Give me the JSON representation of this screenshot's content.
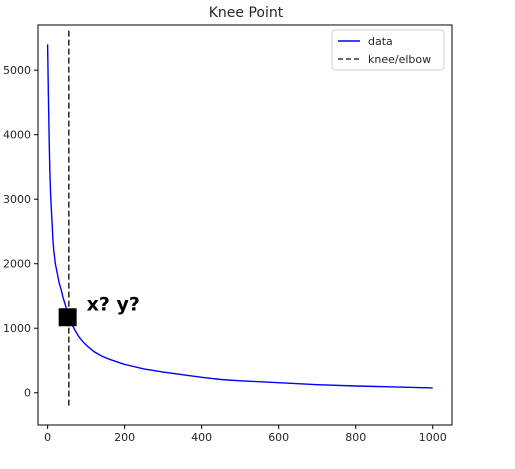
{
  "chart_data": {
    "type": "line",
    "title": "Knee Point",
    "xlabel": "",
    "ylabel": "",
    "xlim": [
      -25,
      1050
    ],
    "ylim": [
      -500,
      5700
    ],
    "xticks": [
      0,
      200,
      400,
      600,
      800,
      1000
    ],
    "yticks": [
      0,
      1000,
      2000,
      3000,
      4000,
      5000
    ],
    "grid": false,
    "legend": "top-right",
    "series": [
      {
        "name": "data",
        "color": "#0000ff",
        "style": "solid",
        "x": [
          0,
          2,
          4,
          6,
          8,
          10,
          12,
          14,
          16,
          18,
          20,
          25,
          30,
          35,
          40,
          45,
          50,
          55,
          60,
          70,
          80,
          90,
          100,
          120,
          140,
          160,
          180,
          200,
          250,
          300,
          350,
          400,
          450,
          500,
          600,
          700,
          800,
          900,
          1000
        ],
        "y": [
          5400,
          4600,
          3900,
          3400,
          3050,
          2800,
          2600,
          2350,
          2200,
          2100,
          2000,
          1850,
          1700,
          1600,
          1480,
          1380,
          1280,
          1180,
          1100,
          980,
          880,
          800,
          740,
          640,
          570,
          520,
          480,
          440,
          370,
          320,
          280,
          240,
          205,
          185,
          155,
          125,
          105,
          90,
          75
        ]
      },
      {
        "name": "knee/elbow",
        "color": "#333333",
        "style": "dashed",
        "x": [
          55,
          55
        ],
        "y": [
          -200,
          5650
        ]
      }
    ],
    "annotations": [
      {
        "text": "x? y?",
        "marker": "square",
        "marker_color": "#000000",
        "x": 52,
        "y": 1170
      }
    ]
  }
}
